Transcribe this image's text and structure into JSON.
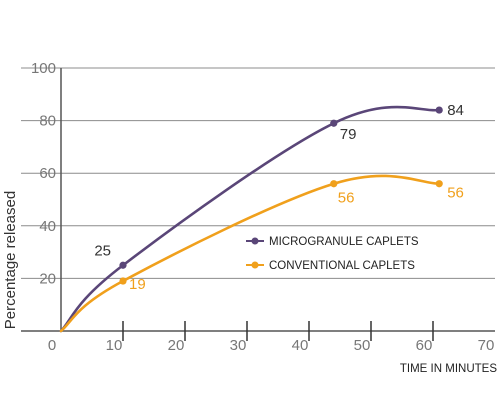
{
  "chart_data": {
    "type": "line",
    "xlabel": "TIME IN MINUTES",
    "ylabel": "Percentage released",
    "xlim": [
      0,
      70
    ],
    "ylim": [
      0,
      100
    ],
    "x_ticks": [
      0,
      10,
      20,
      30,
      40,
      50,
      60,
      70
    ],
    "y_ticks": [
      20,
      40,
      60,
      80,
      100
    ],
    "grid": "horizontal",
    "legend_position": "center-right",
    "series": [
      {
        "name": "MICROGRANULE CAPLETS",
        "color": "#5a4678",
        "points": [
          {
            "x": 0,
            "y": 0
          },
          {
            "x": 10,
            "y": 25,
            "label": "25"
          },
          {
            "x": 44,
            "y": 79,
            "label": "79"
          },
          {
            "x": 61,
            "y": 84,
            "label": "84"
          }
        ]
      },
      {
        "name": "CONVENTIONAL CAPLETS",
        "color": "#f0a01c",
        "points": [
          {
            "x": 0,
            "y": 0
          },
          {
            "x": 10,
            "y": 19,
            "label": "19"
          },
          {
            "x": 44,
            "y": 56,
            "label": "56"
          },
          {
            "x": 61,
            "y": 56,
            "label": "56"
          }
        ]
      }
    ]
  }
}
